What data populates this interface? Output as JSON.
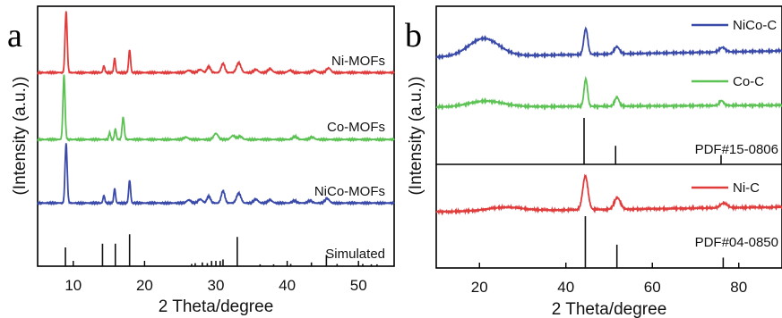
{
  "chart_data": [
    {
      "panel": "a",
      "type": "line",
      "xlabel": "2 Theta/degree",
      "ylabel": "(Intensity (a.u.))",
      "xlim": [
        5,
        55
      ],
      "xticks": [
        10,
        20,
        30,
        40,
        50
      ],
      "series": [
        {
          "name": "Ni-MOFs",
          "color": "#e03c3c",
          "baseline": 0.2,
          "peaks": [
            [
              9.0,
              8.0,
              0.15
            ],
            [
              14.3,
              0.9,
              0.12
            ],
            [
              15.8,
              1.9,
              0.12
            ],
            [
              17.9,
              3.0,
              0.13
            ],
            [
              26.2,
              0.3,
              0.3
            ],
            [
              27.8,
              0.4,
              0.3
            ],
            [
              29.0,
              0.8,
              0.25
            ],
            [
              31.0,
              1.2,
              0.25
            ],
            [
              33.2,
              1.3,
              0.3
            ],
            [
              35.6,
              0.4,
              0.3
            ],
            [
              37.6,
              0.5,
              0.3
            ],
            [
              40.4,
              0.3,
              0.3
            ],
            [
              43.8,
              0.3,
              0.3
            ],
            [
              45.8,
              0.6,
              0.3
            ]
          ]
        },
        {
          "name": "Co-MOFs",
          "color": "#5cc254",
          "baseline": 0.1,
          "peaks": [
            [
              8.7,
              8.5,
              0.15
            ],
            [
              15.1,
              0.9,
              0.12
            ],
            [
              15.9,
              1.4,
              0.12
            ],
            [
              17.0,
              2.9,
              0.15
            ],
            [
              25.8,
              0.3,
              0.3
            ],
            [
              30.0,
              0.8,
              0.3
            ],
            [
              32.4,
              0.5,
              0.3
            ],
            [
              33.4,
              0.4,
              0.3
            ],
            [
              41.1,
              0.4,
              0.3
            ],
            [
              43.5,
              0.3,
              0.3
            ]
          ]
        },
        {
          "name": "NiCo-MOFs",
          "color": "#3a4aa8",
          "baseline": 0.2,
          "peaks": [
            [
              9.0,
              7.8,
              0.15
            ],
            [
              14.3,
              1.0,
              0.12
            ],
            [
              15.8,
              1.9,
              0.12
            ],
            [
              17.9,
              3.0,
              0.13
            ],
            [
              26.2,
              0.4,
              0.3
            ],
            [
              27.8,
              0.5,
              0.3
            ],
            [
              29.0,
              0.9,
              0.25
            ],
            [
              31.0,
              1.6,
              0.25
            ],
            [
              33.2,
              1.3,
              0.3
            ],
            [
              35.6,
              0.5,
              0.3
            ],
            [
              37.6,
              0.4,
              0.3
            ],
            [
              41.0,
              0.3,
              0.3
            ],
            [
              43.2,
              0.3,
              0.3
            ],
            [
              45.6,
              0.6,
              0.3
            ]
          ]
        }
      ],
      "sticks": {
        "name": "Simulated",
        "color": "#111111",
        "lines": [
          [
            8.9,
            0.5
          ],
          [
            14.1,
            0.6
          ],
          [
            15.9,
            0.6
          ],
          [
            17.9,
            0.85
          ],
          [
            26.6,
            0.06
          ],
          [
            27.1,
            0.08
          ],
          [
            28.1,
            0.1
          ],
          [
            28.8,
            0.08
          ],
          [
            29.4,
            0.14
          ],
          [
            30.6,
            0.14
          ],
          [
            31.0,
            0.18
          ],
          [
            33.0,
            0.78
          ],
          [
            36.2,
            0.05
          ],
          [
            38.1,
            0.05
          ],
          [
            40.5,
            0.06
          ],
          [
            43.4,
            0.1
          ],
          [
            45.5,
            0.3
          ],
          [
            47.0,
            0.06
          ],
          [
            50.6,
            0.06
          ],
          [
            51.8,
            0.05
          ],
          [
            52.6,
            0.05
          ]
        ]
      }
    },
    {
      "panel": "b",
      "type": "line",
      "xlabel": "2 Theta/degree",
      "ylabel": "(Intensity (a.u.))",
      "xlim": [
        10,
        90
      ],
      "xticks": [
        20,
        40,
        60,
        80
      ],
      "series": [
        {
          "name": "NiCo-C",
          "color": "#3a4aa8",
          "baseline": 0.0,
          "slope": 0.7,
          "peaks": [
            [
              21.0,
              2.0,
              3.5
            ],
            [
              44.6,
              2.9,
              0.45
            ],
            [
              51.8,
              0.8,
              0.6
            ],
            [
              76.2,
              0.5,
              0.7
            ]
          ]
        },
        {
          "name": "Co-C",
          "color": "#5cc254",
          "baseline": 0.0,
          "slope": 0.2,
          "peaks": [
            [
              21.5,
              0.6,
              4.0
            ],
            [
              44.6,
              2.8,
              0.4
            ],
            [
              51.8,
              0.9,
              0.5
            ],
            [
              76.0,
              0.5,
              0.5
            ]
          ]
        },
        {
          "name": "Ni-C",
          "color": "#e03c3c",
          "baseline": 0.0,
          "slope": 0.4,
          "peaks": [
            [
              26.0,
              0.3,
              4.0
            ],
            [
              44.5,
              2.9,
              0.6
            ],
            [
              51.9,
              1.0,
              0.7
            ],
            [
              76.5,
              0.4,
              0.8
            ]
          ]
        }
      ],
      "references": [
        {
          "name": "PDF#15-0806",
          "color": "#111111",
          "lines": [
            [
              44.2,
              1.0
            ],
            [
              51.5,
              0.4
            ],
            [
              75.9,
              0.2
            ]
          ]
        },
        {
          "name": "PDF#04-0850",
          "color": "#111111",
          "lines": [
            [
              44.5,
              1.0
            ],
            [
              51.8,
              0.45
            ],
            [
              76.4,
              0.2
            ]
          ]
        }
      ]
    }
  ]
}
